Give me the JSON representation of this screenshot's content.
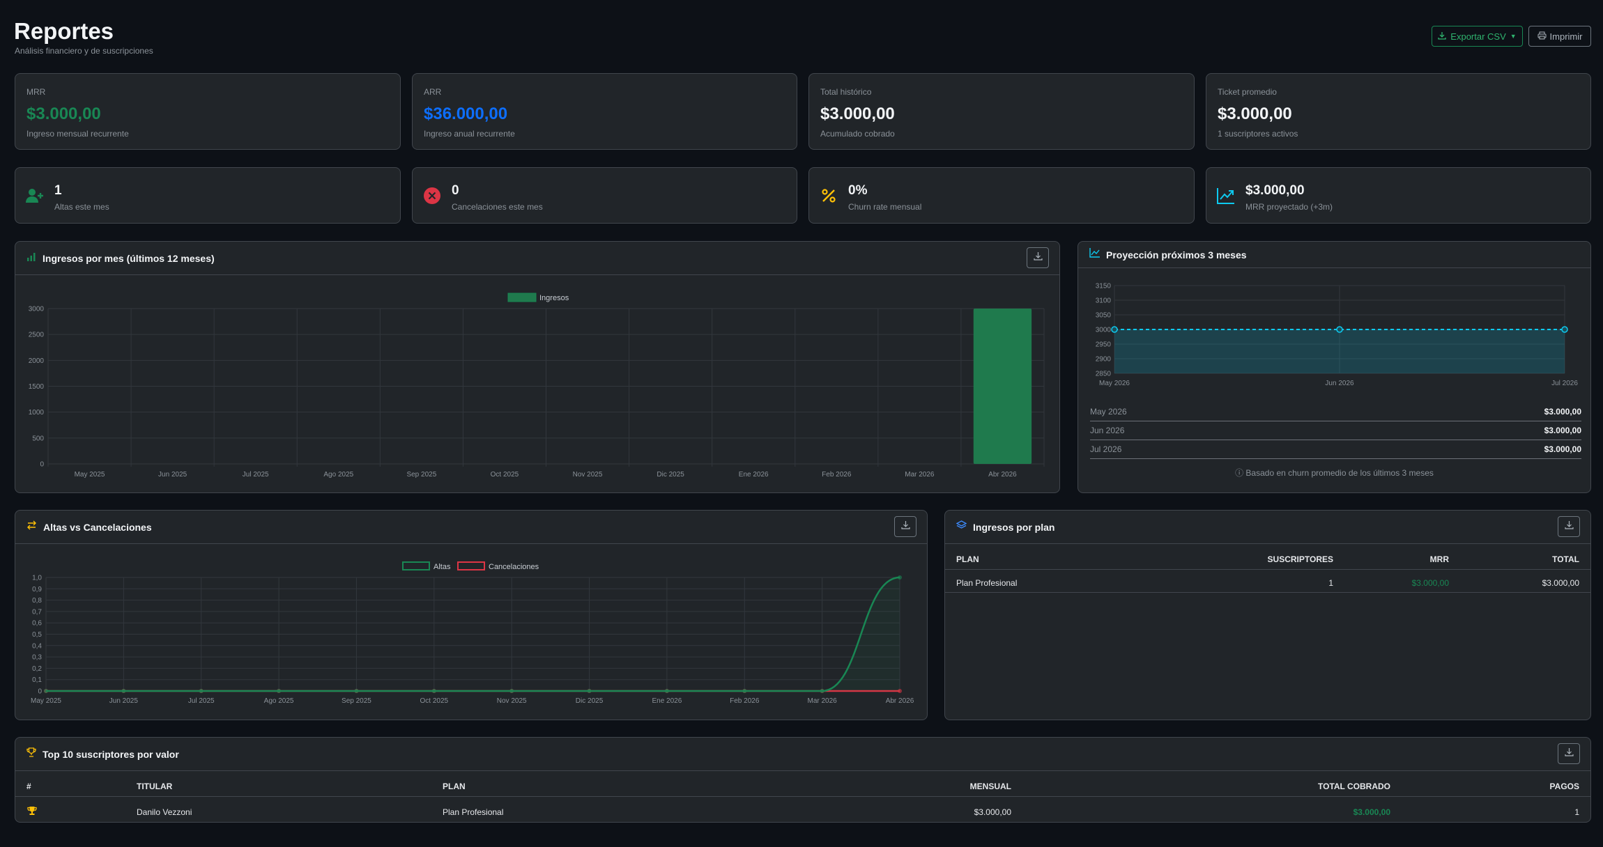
{
  "header": {
    "title": "Reportes",
    "subtitle": "Análisis financiero y de suscripciones",
    "export_label": "Exportar CSV",
    "print_label": "Imprimir"
  },
  "kpis": [
    {
      "label": "MRR",
      "value": "$3.000,00",
      "desc": "Ingreso mensual recurrente",
      "color": "#198754"
    },
    {
      "label": "ARR",
      "value": "$36.000,00",
      "desc": "Ingreso anual recurrente",
      "color": "#0d6efd"
    },
    {
      "label": "Total histórico",
      "value": "$3.000,00",
      "desc": "Acumulado cobrado",
      "color": "#f2f4f6"
    },
    {
      "label": "Ticket promedio",
      "value": "$3.000,00",
      "desc": "1 suscriptores activos",
      "color": "#f2f4f6"
    }
  ],
  "metrics": [
    {
      "icon": "user-plus-icon",
      "value": "1",
      "desc": "Altas este mes",
      "color": "#198754"
    },
    {
      "icon": "x-circle-icon",
      "value": "0",
      "desc": "Cancelaciones este mes",
      "color": "#dc3545"
    },
    {
      "icon": "percent-icon",
      "value": "0%",
      "desc": "Churn rate mensual",
      "color": "#ffc107"
    },
    {
      "icon": "trending-up-icon",
      "value": "$3.000,00",
      "desc": "MRR proyectado (+3m)",
      "color": "#0dcaf0"
    }
  ],
  "revenue_panel": {
    "title": "Ingresos por mes (últimos 12 meses)",
    "icon": "bar-chart-icon"
  },
  "projection_panel": {
    "title": "Proyección próximos 3 meses",
    "icon": "line-chart-icon",
    "rows": [
      {
        "month": "May 2026",
        "value": "$3.000,00"
      },
      {
        "month": "Jun 2026",
        "value": "$3.000,00"
      },
      {
        "month": "Jul 2026",
        "value": "$3.000,00"
      }
    ],
    "note": "ⓘ Basado en churn promedio de los últimos 3 meses"
  },
  "altas_panel": {
    "title": "Altas vs Cancelaciones",
    "icon": "arrows-exchange-icon"
  },
  "plan_panel": {
    "title": "Ingresos por plan",
    "icon": "layers-icon",
    "columns": [
      "PLAN",
      "SUSCRIPTORES",
      "MRR",
      "TOTAL"
    ],
    "rows": [
      {
        "plan": "Plan Profesional",
        "subs": "1",
        "mrr": "$3.000,00",
        "total": "$3.000,00"
      }
    ]
  },
  "top_panel": {
    "title": "Top 10 suscriptores por valor",
    "icon": "trophy-icon",
    "columns": [
      "#",
      "TITULAR",
      "PLAN",
      "MENSUAL",
      "TOTAL COBRADO",
      "PAGOS"
    ],
    "rows": [
      {
        "rank_icon": "trophy-icon",
        "holder": "Danilo Vezzoni",
        "plan": "Plan Profesional",
        "monthly": "$3.000,00",
        "total": "$3.000,00",
        "payments": "1"
      }
    ]
  },
  "chart_data": [
    {
      "type": "bar",
      "categories": [
        "May 2025",
        "Jun 2025",
        "Jul 2025",
        "Ago 2025",
        "Sep 2025",
        "Oct 2025",
        "Nov 2025",
        "Dic 2025",
        "Ene 2026",
        "Feb 2026",
        "Mar 2026",
        "Abr 2026"
      ],
      "series": [
        {
          "name": "Ingresos",
          "values": [
            0,
            0,
            0,
            0,
            0,
            0,
            0,
            0,
            0,
            0,
            0,
            3000
          ],
          "color": "#1f7a4d"
        }
      ],
      "yticks": [
        "0",
        "500",
        "1000",
        "1500",
        "2000",
        "2500",
        "3000"
      ],
      "ylim": [
        0,
        3000
      ],
      "legend": "top-center",
      "grid": true
    },
    {
      "type": "area",
      "categories": [
        "May 2026",
        "Jun 2026",
        "Jul 2026"
      ],
      "series": [
        {
          "values": [
            3000,
            3000,
            3000
          ],
          "color": "#0dcaf0"
        }
      ],
      "yticks": [
        "2850",
        "2900",
        "2950",
        "3000",
        "3050",
        "3100",
        "3150"
      ],
      "ylim": [
        2850,
        3150
      ],
      "grid": true
    },
    {
      "type": "line",
      "categories": [
        "May 2025",
        "Jun 2025",
        "Jul 2025",
        "Ago 2025",
        "Sep 2025",
        "Oct 2025",
        "Nov 2025",
        "Dic 2025",
        "Ene 2026",
        "Feb 2026",
        "Mar 2026",
        "Abr 2026"
      ],
      "series": [
        {
          "name": "Altas",
          "values": [
            0,
            0,
            0,
            0,
            0,
            0,
            0,
            0,
            0,
            0,
            0,
            1
          ],
          "color": "#198754"
        },
        {
          "name": "Cancelaciones",
          "values": [
            0,
            0,
            0,
            0,
            0,
            0,
            0,
            0,
            0,
            0,
            0,
            0
          ],
          "color": "#dc3545"
        }
      ],
      "yticks": [
        "0",
        "0,1",
        "0,2",
        "0,3",
        "0,4",
        "0,5",
        "0,6",
        "0,7",
        "0,8",
        "0,9",
        "1,0"
      ],
      "ylim": [
        0,
        1
      ],
      "legend": "top-center",
      "grid": true
    }
  ]
}
